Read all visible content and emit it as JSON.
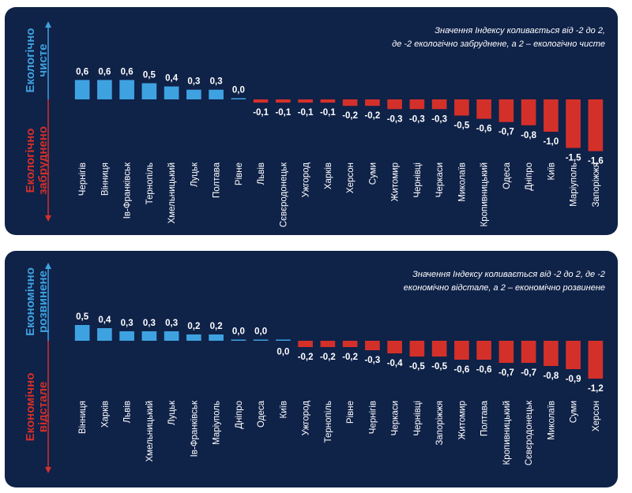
{
  "colors": {
    "panel_bg": "#0f2248",
    "positive": "#3fa2e0",
    "negative": "#d3302a",
    "text": "#ffffff",
    "baseline": "#3fa2e0"
  },
  "chart_data": [
    {
      "type": "bar",
      "title": "",
      "note_lines": [
        "Значення Індексу коливається від -2 до 2,",
        "де -2 екологічно забруднене, а 2 – екологічно чисте"
      ],
      "axis_top_label": [
        "Екологічно",
        "чисте"
      ],
      "axis_bottom_label": [
        "Екологічно",
        "забруднено"
      ],
      "categories": [
        "Чернігів",
        "Вінниця",
        "Ів-Франківськ",
        "Тернопіль",
        "Хмельницький",
        "Луцьк",
        "Полтава",
        "Рівне",
        "Львів",
        "Сєвєродонецьк",
        "Ужгород",
        "Харків",
        "Херсон",
        "Суми",
        "Житомир",
        "Чернівці",
        "Черкаси",
        "Миколаїв",
        "Кропивницький",
        "Одеса",
        "Дніпро",
        "Київ",
        "Маріуполь",
        "Запоріжжя"
      ],
      "values": [
        0.6,
        0.6,
        0.6,
        0.5,
        0.4,
        0.3,
        0.3,
        0.0,
        -0.1,
        -0.1,
        -0.1,
        -0.1,
        -0.2,
        -0.2,
        -0.3,
        -0.3,
        -0.3,
        -0.5,
        -0.6,
        -0.7,
        -0.8,
        -1.0,
        -1.5,
        -1.6
      ],
      "value_labels": [
        "0,6",
        "0,6",
        "0,6",
        "0,5",
        "0,4",
        "0,3",
        "0,3",
        "0,0",
        "-0,1",
        "-0,1",
        "-0,1",
        "-0,1",
        "-0,2",
        "-0,2",
        "-0,3",
        "-0,3",
        "-0,3",
        "-0,5",
        "-0,6",
        "-0,7",
        "-0,8",
        "-1,0",
        "-1,5",
        "-1,6"
      ],
      "ylim": [
        -2,
        2
      ]
    },
    {
      "type": "bar",
      "title": "",
      "note_lines": [
        "Значення Індексу коливається від -2 до 2, де -2",
        "економічно відстале, а 2 – економічно розвинене"
      ],
      "axis_top_label": [
        "Економічно",
        "розвинене"
      ],
      "axis_bottom_label": [
        "Економічно",
        "відстале"
      ],
      "categories": [
        "Вінниця",
        "Харків",
        "Львів",
        "Хмельницький",
        "Луцьк",
        "Ів-Франківськ",
        "Маріуполь",
        "Дніпро",
        "Одеса",
        "Київ",
        "Ужгород",
        "Тернопіль",
        "Рівне",
        "Чернігів",
        "Черкаси",
        "Чернівці",
        "Запоріжжя",
        "Житомир",
        "Полтава",
        "Кропивницький",
        "Сєвєродонецьк",
        "Миколаїв",
        "Суми",
        "Херсон"
      ],
      "values": [
        0.5,
        0.4,
        0.3,
        0.3,
        0.3,
        0.2,
        0.2,
        0.0,
        0.0,
        0.0,
        -0.2,
        -0.2,
        -0.2,
        -0.3,
        -0.4,
        -0.5,
        -0.5,
        -0.6,
        -0.6,
        -0.7,
        -0.7,
        -0.8,
        -0.9,
        -1.2
      ],
      "value_labels": [
        "0,5",
        "0,4",
        "0,3",
        "0,3",
        "0,3",
        "0,2",
        "0,2",
        "0,0",
        "0,0",
        "0,0",
        "-0,2",
        "-0,2",
        "-0,2",
        "-0,3",
        "-0,4",
        "-0,5",
        "-0,5",
        "-0,6",
        "-0,6",
        "-0,7",
        "-0,7",
        "-0,8",
        "-0,9",
        "-1,2"
      ],
      "ylim": [
        -2,
        2
      ]
    }
  ]
}
